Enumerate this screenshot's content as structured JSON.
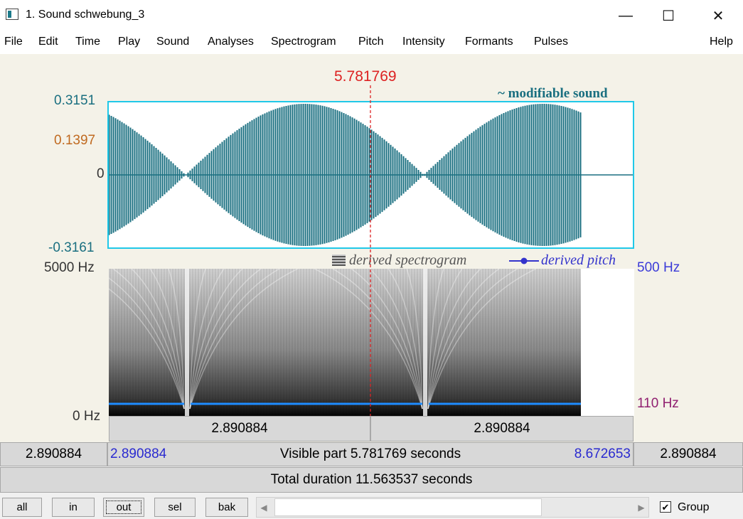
{
  "window": {
    "title": "1. Sound schwebung_3",
    "minimize": "—",
    "maximize": "☐",
    "close": "✕"
  },
  "menu": [
    "File",
    "Edit",
    "Time",
    "Play",
    "Sound",
    "Analyses",
    "Spectrogram",
    "Pitch",
    "Intensity",
    "Formants",
    "Pulses"
  ],
  "help_menu": "Help",
  "cursor": {
    "time_label": "5.781769"
  },
  "waveform": {
    "label": "~ modifiable sound",
    "ymax": "0.3151",
    "ymid": "0.1397",
    "yzero": "0",
    "ymin": "-0.3161"
  },
  "spectrogram": {
    "legend_spectrogram": "derived spectrogram",
    "legend_pitch": "derived pitch",
    "freq_top": "5000 Hz",
    "freq_bottom": "0 Hz",
    "pitch_top": "500 Hz",
    "pitch_bottom": "110 Hz"
  },
  "timebars": {
    "left_sel": "2.890884",
    "right_sel": "2.890884",
    "row2_left_outer": "2.890884",
    "row2_left": "2.890884",
    "row2_visible": "Visible part 5.781769 seconds",
    "row2_right": "8.672653",
    "row2_right_outer": "2.890884",
    "total": "Total duration 11.563537 seconds"
  },
  "buttons": {
    "all": "all",
    "in": "in",
    "out": "out",
    "sel": "sel",
    "bak": "bak"
  },
  "group": {
    "label": "Group",
    "checked": true
  },
  "colors": {
    "wave": "#1a6f80",
    "cursor": "#dd2222",
    "pitch": "#1e8cff",
    "boxborder": "#20c8e8"
  }
}
